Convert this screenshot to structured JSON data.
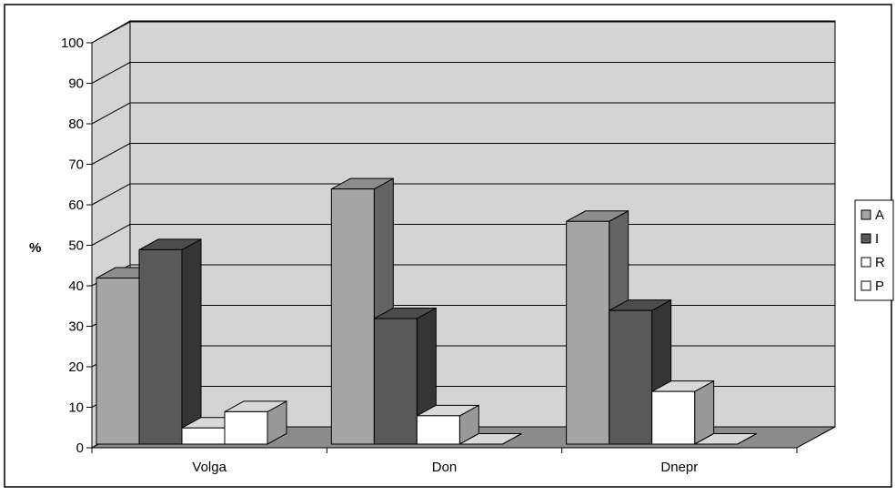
{
  "chart_data": {
    "type": "bar",
    "title": "",
    "xlabel": "",
    "ylabel": "%",
    "ylim": [
      0,
      100
    ],
    "yticks": [
      "0",
      "10",
      "20",
      "30",
      "40",
      "50",
      "60",
      "70",
      "80",
      "90",
      "100"
    ],
    "grid": true,
    "legend_position": "right",
    "categories": [
      "Volga",
      "Don",
      "Dnepr"
    ],
    "series": [
      {
        "name": "A",
        "values": [
          41,
          63,
          55
        ],
        "color": "#a6a6a6"
      },
      {
        "name": "I",
        "values": [
          48,
          31,
          33
        ],
        "color": "#595959"
      },
      {
        "name": "R",
        "values": [
          4,
          7,
          13
        ],
        "color": "#ffffff"
      },
      {
        "name": "P",
        "values": [
          8,
          0,
          0
        ],
        "color": "#ffffff"
      }
    ],
    "wall_color": "#d4d4d4",
    "floor_color": "#8c8c8c"
  }
}
